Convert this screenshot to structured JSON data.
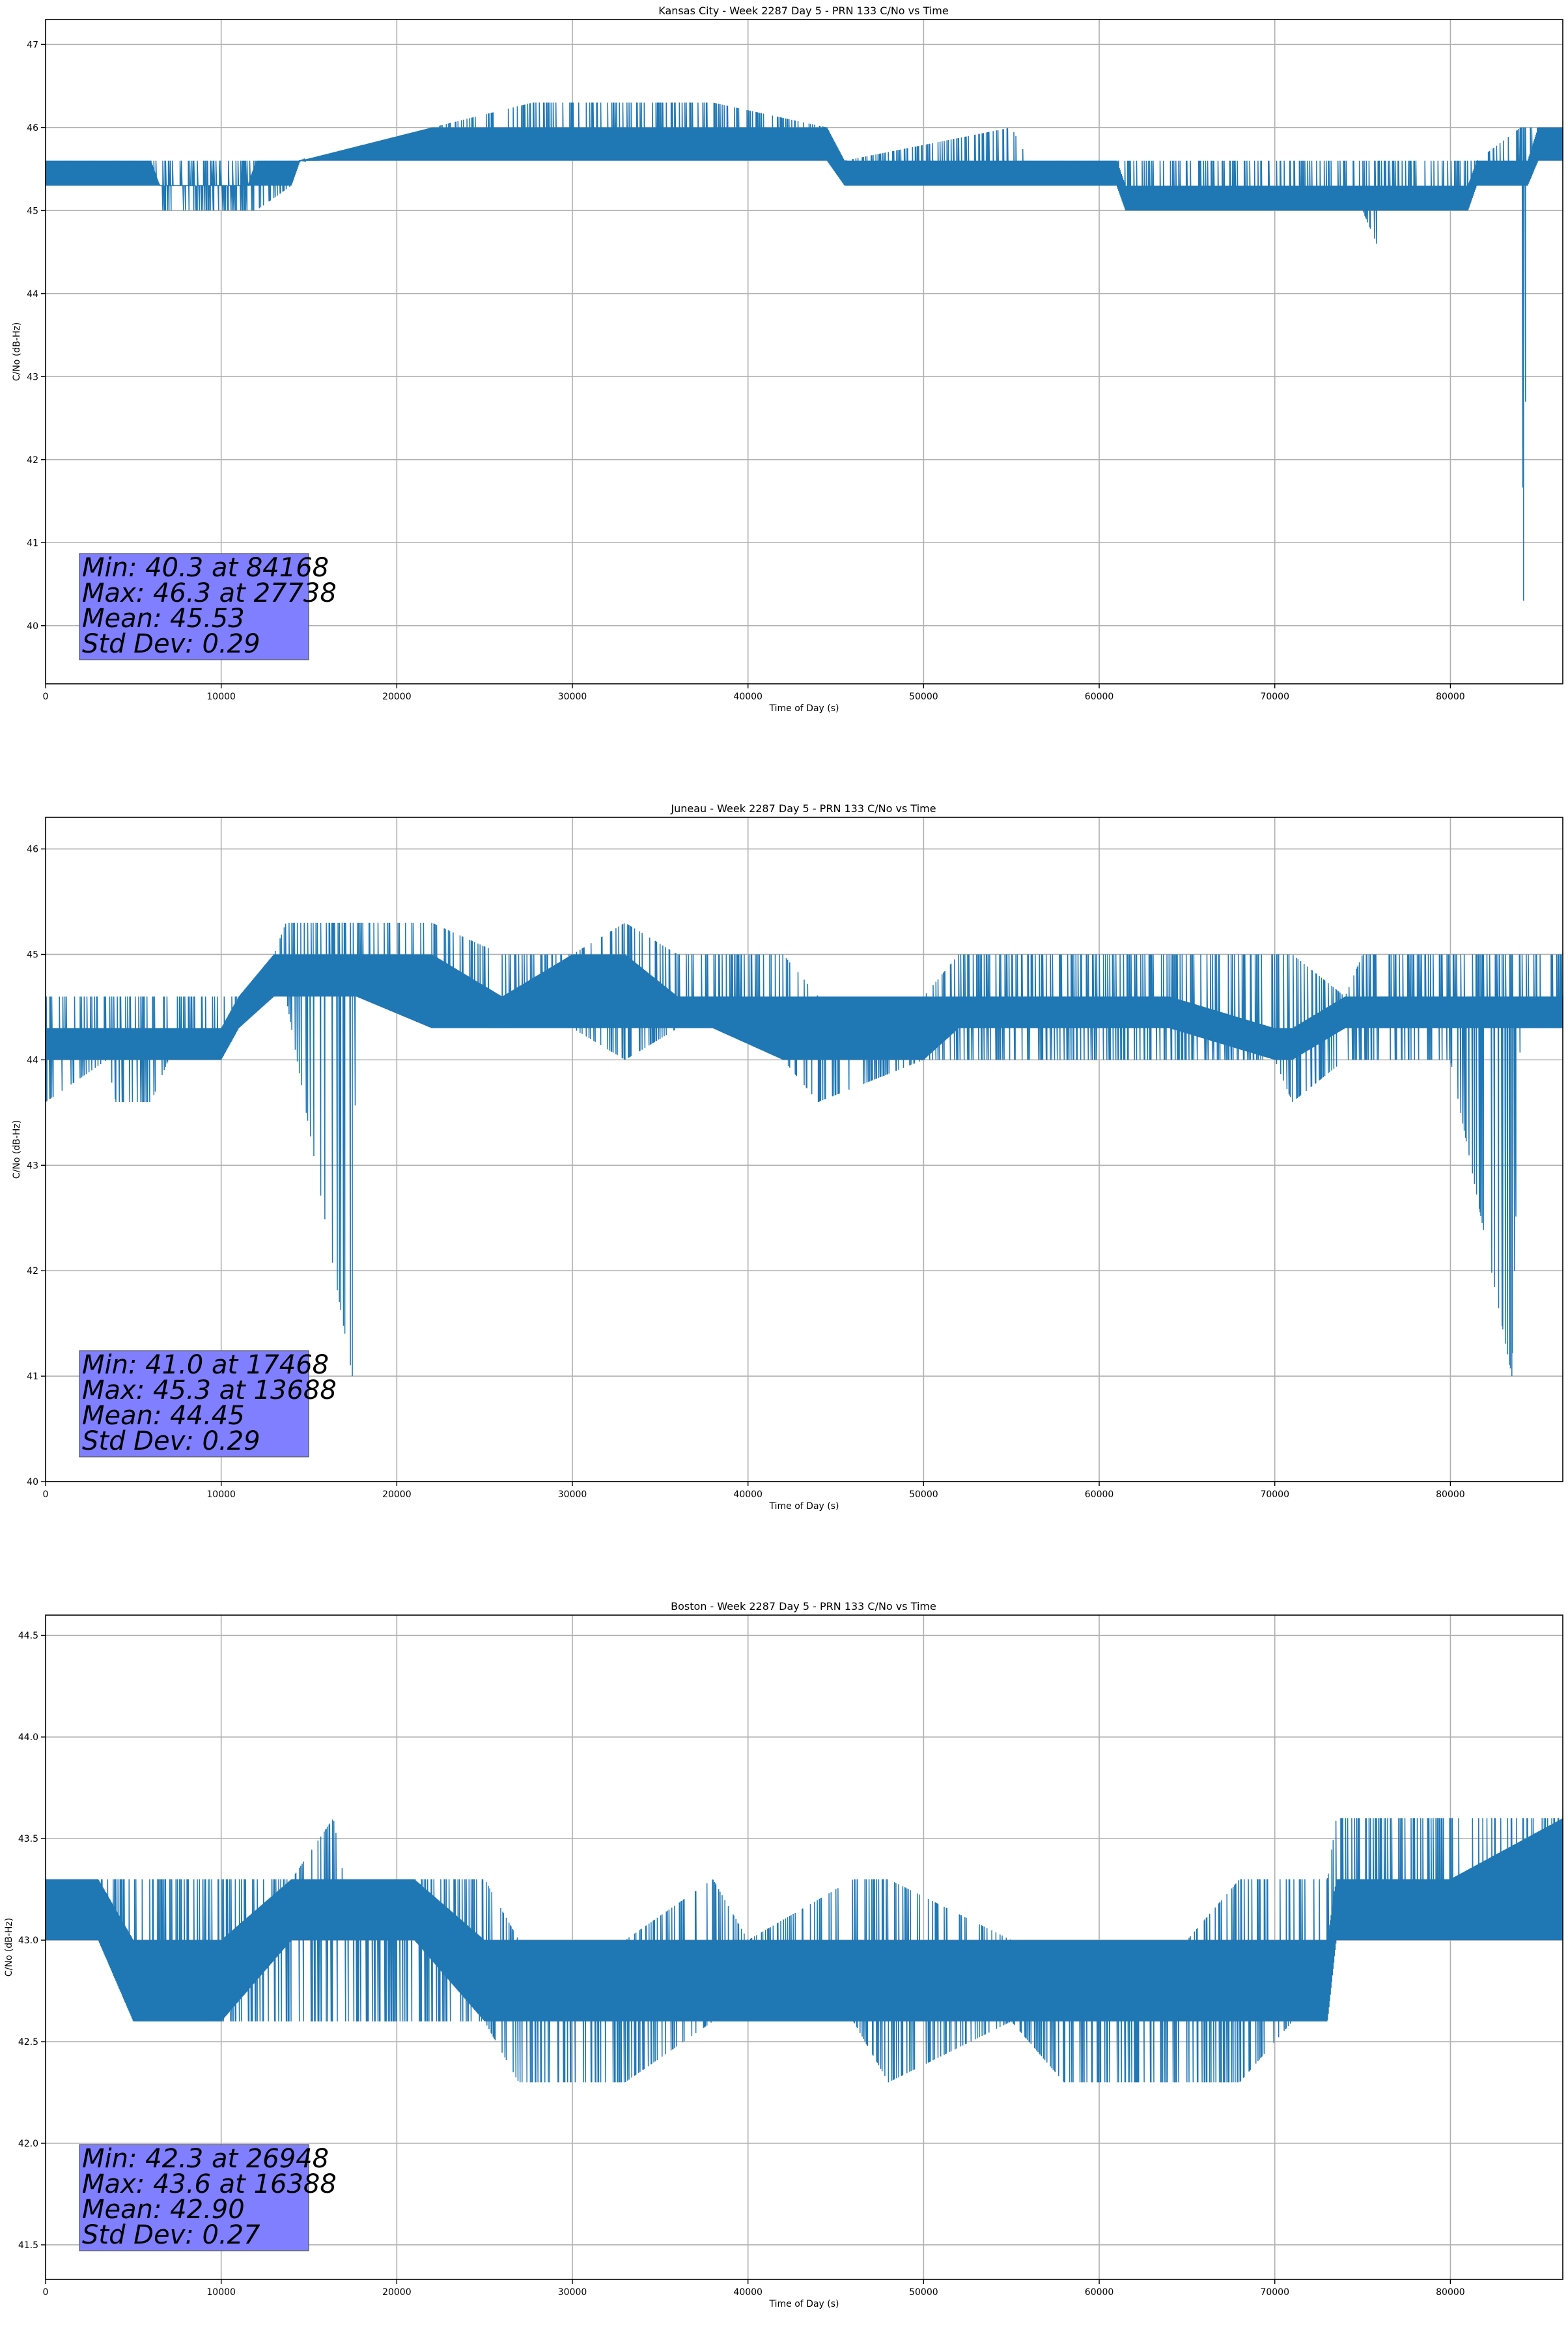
{
  "chart_data": [
    {
      "type": "line",
      "title": "Kansas City - Week 2287 Day 5 - PRN 133 C/No vs Time",
      "xlabel": "Time of Day (s)",
      "ylabel": "C/No (dB-Hz)",
      "xlim": [
        0,
        86400
      ],
      "ylim": [
        39.3,
        47.3
      ],
      "xticks": [
        0,
        10000,
        20000,
        30000,
        40000,
        50000,
        60000,
        70000,
        80000
      ],
      "yticks": [
        40,
        41,
        42,
        43,
        44,
        45,
        46,
        47
      ],
      "grid": true,
      "color": "#1f77b4",
      "stats": {
        "min": "Min: 40.3 at 84168",
        "max": "Max: 46.3 at 27738",
        "mean": "Mean: 45.53",
        "std": "Std Dev: 0.29"
      },
      "series": [
        {
          "x": [
            0,
            6000,
            6500,
            11500,
            12000,
            14000,
            14500,
            22000,
            27738,
            38000,
            44500,
            45500,
            55000,
            56000,
            61000,
            61500,
            75000,
            75800,
            76000,
            81000,
            81500,
            84000,
            84168,
            84400,
            85000,
            86400
          ],
          "low": [
            45.3,
            45.3,
            45.0,
            45.0,
            45.0,
            45.3,
            45.6,
            45.6,
            45.6,
            45.6,
            45.6,
            45.3,
            45.3,
            45.3,
            45.3,
            45.0,
            45.0,
            44.6,
            45.0,
            45.0,
            45.3,
            45.3,
            40.3,
            45.3,
            45.6,
            45.6
          ],
          "high": [
            45.6,
            45.6,
            45.6,
            45.6,
            45.6,
            45.6,
            45.6,
            46.0,
            46.3,
            46.3,
            46.0,
            45.6,
            46.0,
            45.6,
            45.6,
            45.6,
            45.6,
            45.6,
            45.6,
            45.6,
            45.6,
            46.0,
            46.0,
            46.0,
            46.0,
            46.0
          ],
          "main_low": [
            45.3,
            45.3,
            45.3,
            45.3,
            45.3,
            45.3,
            45.6,
            45.6,
            45.6,
            45.6,
            45.6,
            45.3,
            45.3,
            45.3,
            45.3,
            45.0,
            45.0,
            45.0,
            45.0,
            45.0,
            45.3,
            45.3,
            45.3,
            45.3,
            45.6,
            45.6
          ],
          "main_high": [
            45.6,
            45.6,
            45.3,
            45.3,
            45.6,
            45.6,
            45.6,
            46.0,
            46.0,
            46.0,
            46.0,
            45.6,
            45.6,
            45.6,
            45.6,
            45.3,
            45.3,
            45.3,
            45.3,
            45.3,
            45.6,
            45.6,
            45.6,
            45.6,
            46.0,
            46.0
          ]
        }
      ]
    },
    {
      "type": "line",
      "title": "Juneau - Week 2287 Day 5 - PRN 133 C/No vs Time",
      "xlabel": "Time of Day (s)",
      "ylabel": "C/No (dB-Hz)",
      "xlim": [
        0,
        86400
      ],
      "ylim": [
        40.0,
        46.3
      ],
      "xticks": [
        0,
        10000,
        20000,
        30000,
        40000,
        50000,
        60000,
        70000,
        80000
      ],
      "yticks": [
        40,
        41,
        42,
        43,
        44,
        45,
        46
      ],
      "grid": true,
      "color": "#1f77b4",
      "stats": {
        "min": "Min: 41.0 at 17468",
        "max": "Max: 45.3 at 13688",
        "mean": "Mean: 44.45",
        "std": "Std Dev: 0.29"
      },
      "series": [
        {
          "x": [
            0,
            3500,
            4000,
            6000,
            7000,
            10000,
            11000,
            13000,
            13688,
            17468,
            17700,
            22000,
            26000,
            30000,
            33000,
            36000,
            38000,
            42000,
            44000,
            50000,
            52000,
            62000,
            64000,
            70000,
            71000,
            74000,
            75000,
            80000,
            83500,
            84000,
            86400
          ],
          "low": [
            43.6,
            44.0,
            43.6,
            43.6,
            44.0,
            44.0,
            44.3,
            44.6,
            44.6,
            41.0,
            44.6,
            44.3,
            44.3,
            44.3,
            44.0,
            44.3,
            44.3,
            44.0,
            43.6,
            44.0,
            44.0,
            44.0,
            44.0,
            44.0,
            43.6,
            44.0,
            44.0,
            44.0,
            41.0,
            44.3,
            44.3
          ],
          "high": [
            44.6,
            44.6,
            44.6,
            44.6,
            44.6,
            44.6,
            44.6,
            45.0,
            45.3,
            45.3,
            45.3,
            45.3,
            45.0,
            45.0,
            45.3,
            45.0,
            45.0,
            45.0,
            44.6,
            44.6,
            45.0,
            45.0,
            45.0,
            45.0,
            45.0,
            44.6,
            45.0,
            45.0,
            45.0,
            45.0,
            45.0
          ],
          "main_low": [
            44.0,
            44.0,
            44.0,
            44.0,
            44.0,
            44.0,
            44.3,
            44.6,
            44.6,
            44.6,
            44.6,
            44.3,
            44.3,
            44.3,
            44.3,
            44.3,
            44.3,
            44.0,
            44.0,
            44.0,
            44.3,
            44.3,
            44.3,
            44.0,
            44.0,
            44.3,
            44.3,
            44.3,
            44.3,
            44.3,
            44.3
          ],
          "main_high": [
            44.3,
            44.3,
            44.3,
            44.3,
            44.3,
            44.3,
            44.6,
            45.0,
            45.0,
            45.0,
            45.0,
            45.0,
            44.6,
            45.0,
            45.0,
            44.6,
            44.6,
            44.6,
            44.6,
            44.6,
            44.6,
            44.6,
            44.6,
            44.3,
            44.3,
            44.6,
            44.6,
            44.6,
            44.6,
            44.6,
            44.6
          ]
        }
      ]
    },
    {
      "type": "line",
      "title": "Boston - Week 2287 Day 5 - PRN 133 C/No vs Time",
      "xlabel": "Time of Day (s)",
      "ylabel": "C/No (dB-Hz)",
      "xlim": [
        0,
        86400
      ],
      "ylim": [
        41.33,
        44.6
      ],
      "xticks": [
        0,
        10000,
        20000,
        30000,
        40000,
        50000,
        60000,
        70000,
        80000
      ],
      "yticks": [
        41.5,
        42.0,
        42.5,
        43.0,
        43.5,
        44.0,
        44.5
      ],
      "ytick_labels": [
        "41.5",
        "42.0",
        "42.5",
        "43.0",
        "43.5",
        "44.0",
        "44.5"
      ],
      "grid": true,
      "color": "#1f77b4",
      "stats": {
        "min": "Min: 42.3 at 26948",
        "max": "Max: 43.6 at 16388",
        "mean": "Mean: 42.90",
        "std": "Std Dev: 0.27"
      },
      "series": [
        {
          "x": [
            0,
            3000,
            5000,
            10000,
            14000,
            16388,
            17000,
            21000,
            25000,
            26948,
            29000,
            33000,
            38000,
            40000,
            46000,
            48000,
            55000,
            58000,
            62000,
            65000,
            68000,
            71000,
            73000,
            73500,
            78000,
            80000,
            86400
          ],
          "low": [
            43.0,
            43.0,
            42.6,
            42.6,
            42.6,
            42.6,
            42.6,
            42.6,
            42.6,
            42.3,
            42.3,
            42.3,
            42.6,
            42.6,
            42.6,
            42.3,
            42.6,
            42.3,
            42.3,
            42.3,
            42.3,
            42.6,
            42.6,
            43.0,
            43.0,
            43.0,
            43.0
          ],
          "high": [
            43.3,
            43.3,
            43.3,
            43.3,
            43.3,
            43.6,
            43.3,
            43.3,
            43.3,
            43.0,
            43.0,
            43.0,
            43.3,
            43.0,
            43.3,
            43.3,
            43.0,
            43.0,
            43.0,
            43.0,
            43.3,
            43.3,
            43.3,
            43.6,
            43.6,
            43.6,
            43.6
          ],
          "main_low": [
            43.0,
            43.0,
            42.6,
            42.6,
            43.0,
            43.0,
            43.0,
            43.0,
            42.6,
            42.6,
            42.6,
            42.6,
            42.6,
            42.6,
            42.6,
            42.6,
            42.6,
            42.6,
            42.6,
            42.6,
            42.6,
            42.6,
            42.6,
            43.0,
            43.0,
            43.0,
            43.0
          ],
          "main_high": [
            43.3,
            43.3,
            43.0,
            43.0,
            43.3,
            43.3,
            43.3,
            43.3,
            43.0,
            43.0,
            43.0,
            43.0,
            43.0,
            43.0,
            43.0,
            43.0,
            43.0,
            43.0,
            43.0,
            43.0,
            43.0,
            43.0,
            43.0,
            43.3,
            43.3,
            43.3,
            43.6
          ]
        }
      ]
    }
  ]
}
